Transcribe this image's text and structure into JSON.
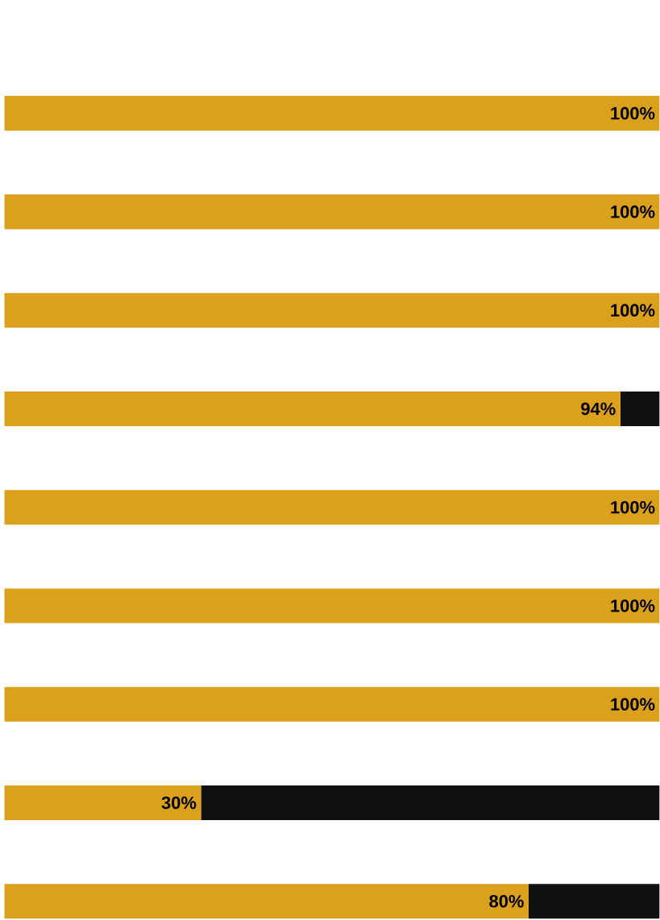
{
  "chart_data": {
    "type": "bar",
    "orientation": "horizontal",
    "stacked": true,
    "categories": [
      null,
      null,
      null,
      null,
      null,
      null,
      null,
      null,
      null
    ],
    "series": [
      {
        "color": "#dba01c",
        "values": [
          100,
          100,
          100,
          94,
          100,
          100,
          100,
          30,
          80
        ],
        "value_labels": [
          "100%",
          "100%",
          "100%",
          "94%",
          "100%",
          "100%",
          "100%",
          "30%",
          "80%"
        ]
      },
      {
        "color": "#111111",
        "values": [
          0,
          0,
          0,
          6,
          0,
          0,
          0,
          70,
          20
        ]
      }
    ]
  }
}
